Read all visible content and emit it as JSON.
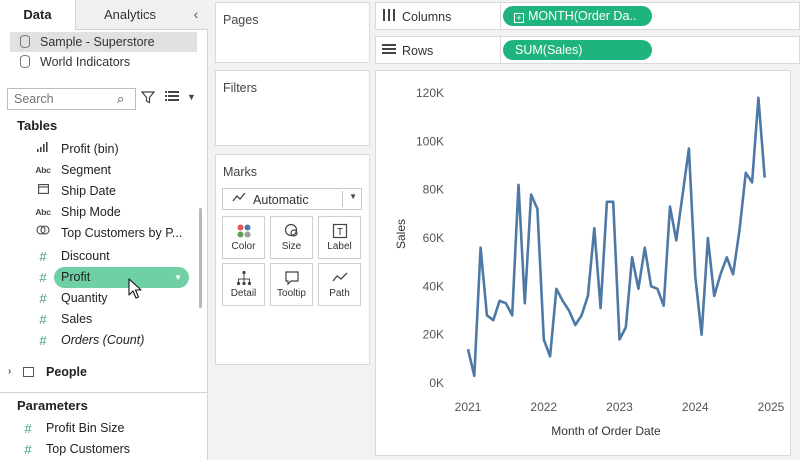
{
  "tabs": {
    "data": "Data",
    "analytics": "Analytics"
  },
  "datasources": [
    "Sample - Superstore",
    "World Indicators"
  ],
  "search": {
    "placeholder": "Search"
  },
  "tables_header": "Tables",
  "fields": [
    {
      "label": "Profit (bin)",
      "icon": "histogram-icon"
    },
    {
      "label": "Segment",
      "icon": "abc-icon"
    },
    {
      "label": "Ship Date",
      "icon": "calendar-icon"
    },
    {
      "label": "Ship Mode",
      "icon": "abc-icon"
    },
    {
      "label": "Top Customers by P...",
      "icon": "set-icon"
    },
    {
      "label": "Discount",
      "icon": "measure-icon"
    },
    {
      "label": "Profit",
      "icon": "measure-icon"
    },
    {
      "label": "Quantity",
      "icon": "measure-icon"
    },
    {
      "label": "Sales",
      "icon": "measure-icon"
    },
    {
      "label": "Orders (Count)",
      "icon": "measure-icon"
    }
  ],
  "people": "People",
  "parameters_header": "Parameters",
  "parameters": [
    "Profit Bin Size",
    "Top Customers"
  ],
  "cards": {
    "pages": "Pages",
    "filters": "Filters",
    "marks": "Marks"
  },
  "mark_type": "Automatic",
  "mark_buttons": [
    "Color",
    "Size",
    "Label",
    "Detail",
    "Tooltip",
    "Path"
  ],
  "shelves": {
    "columns_label": "Columns",
    "rows_label": "Rows",
    "columns_pill": "MONTH(Order Da..",
    "rows_pill": "SUM(Sales)"
  },
  "colors": {
    "pill_green": "#1fb47d",
    "selected_field": "#6fcfa5",
    "line": "#4e79a7"
  },
  "chart_data": {
    "type": "line",
    "xlabel": "Month of Order Date",
    "ylabel": "Sales",
    "x_ticks": [
      "2021",
      "2022",
      "2023",
      "2024",
      "2025"
    ],
    "y_ticks": [
      "0K",
      "20K",
      "40K",
      "60K",
      "80K",
      "100K",
      "120K"
    ],
    "ylim": [
      0,
      120000
    ],
    "x_range": [
      "2021-01",
      "2025-01"
    ],
    "grid": false,
    "series": [
      {
        "x": [
          "2021-01",
          "2021-02",
          "2021-03",
          "2021-04",
          "2021-05",
          "2021-06",
          "2021-07",
          "2021-08",
          "2021-09",
          "2021-10",
          "2021-11",
          "2021-12",
          "2022-01",
          "2022-02",
          "2022-03",
          "2022-04",
          "2022-05",
          "2022-06",
          "2022-07",
          "2022-08",
          "2022-09",
          "2022-10",
          "2022-11",
          "2022-12",
          "2023-01",
          "2023-02",
          "2023-03",
          "2023-04",
          "2023-05",
          "2023-06",
          "2023-07",
          "2023-08",
          "2023-09",
          "2023-10",
          "2023-11",
          "2023-12",
          "2024-01",
          "2024-02",
          "2024-03",
          "2024-04",
          "2024-05",
          "2024-06",
          "2024-07",
          "2024-08",
          "2024-09",
          "2024-10",
          "2024-11",
          "2024-12"
        ],
        "values": [
          14000,
          3000,
          56000,
          28000,
          26000,
          34000,
          33000,
          28000,
          82000,
          33000,
          78000,
          72000,
          18000,
          11000,
          39000,
          34000,
          30000,
          24000,
          28000,
          36000,
          64000,
          31000,
          75000,
          75000,
          18000,
          23000,
          52000,
          39000,
          56000,
          40000,
          39000,
          32000,
          73000,
          59000,
          78000,
          97000,
          44000,
          20000,
          60000,
          36000,
          45000,
          52000,
          45000,
          63000,
          87000,
          83000,
          118000,
          85000
        ]
      }
    ]
  }
}
